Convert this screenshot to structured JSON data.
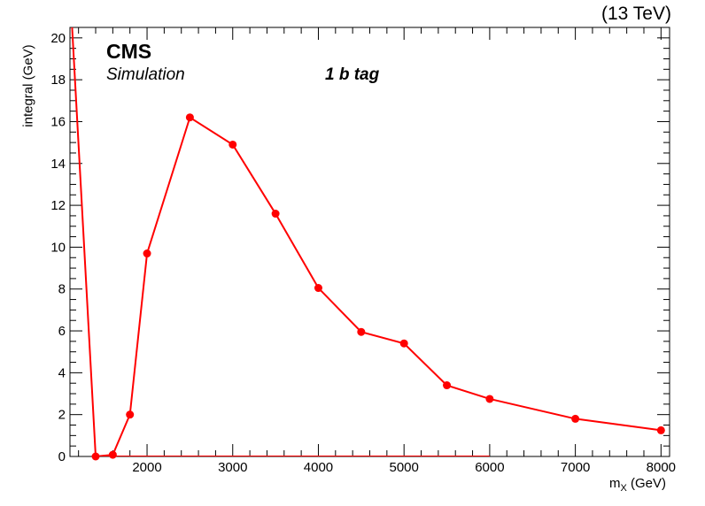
{
  "header": {
    "energy_label": "(13 TeV)",
    "experiment": "CMS",
    "subtitle": "Simulation",
    "category": "1 b tag"
  },
  "chart_data": {
    "type": "line",
    "title": "",
    "xlabel_main": "m",
    "xlabel_sub": "X",
    "xlabel_unit": " (GeV)",
    "ylabel": "integral (GeV)",
    "xlim": [
      1100,
      8100
    ],
    "ylim": [
      0,
      20.5
    ],
    "x_ticks": [
      2000,
      3000,
      4000,
      5000,
      6000,
      7000,
      8000
    ],
    "y_ticks": [
      0,
      2,
      4,
      6,
      8,
      10,
      12,
      14,
      16,
      18,
      20
    ],
    "grid": false,
    "color": "#ff0000",
    "series": [
      {
        "x": [
          1400,
          1600,
          1800,
          2000,
          2500,
          3000,
          3500,
          4000,
          4500,
          5000,
          5500,
          6000,
          7000,
          8000
        ],
        "y": [
          0.0,
          0.08,
          2.0,
          9.7,
          16.2,
          14.9,
          11.6,
          8.05,
          5.95,
          5.4,
          3.4,
          2.75,
          1.8,
          1.25
        ]
      }
    ],
    "extra_lines": [
      {
        "x": [
          1100,
          1125,
          1400
        ],
        "y": [
          25,
          20.5,
          0
        ]
      },
      {
        "x": [
          1400,
          6000
        ],
        "y": [
          0,
          0
        ]
      }
    ]
  }
}
